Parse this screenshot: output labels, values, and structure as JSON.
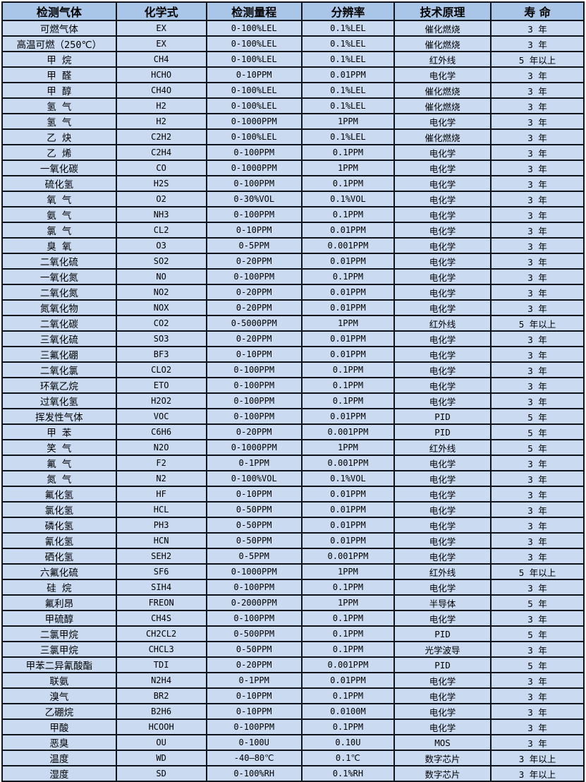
{
  "table": {
    "columns": [
      "检测气体",
      "化学式",
      "检测量程",
      "分辨率",
      "技术原理",
      "寿 命"
    ],
    "column_keys": [
      "gas-name",
      "formula",
      "range",
      "resolution",
      "principle",
      "lifespan"
    ],
    "rows": [
      [
        "可燃气体",
        "EX",
        "0-100%LEL",
        "0.1%LEL",
        "催化燃烧",
        "3 年"
      ],
      [
        "高温可燃（250℃）",
        "EX",
        "0-100%LEL",
        "0.1%LEL",
        "催化燃烧",
        "3 年"
      ],
      [
        "甲 烷",
        "CH4",
        "0-100%LEL",
        "0.1%LEL",
        "红外线",
        "5 年以上"
      ],
      [
        "甲 醛",
        "HCHO",
        "0-10PPM",
        "0.01PPM",
        "电化学",
        "3 年"
      ],
      [
        "甲 醇",
        "CH4O",
        "0-100%LEL",
        "0.1%LEL",
        "催化燃烧",
        "3 年"
      ],
      [
        "氢 气",
        "H2",
        "0-100%LEL",
        "0.1%LEL",
        "催化燃烧",
        "3 年"
      ],
      [
        "氢 气",
        "H2",
        "0-1000PPM",
        "1PPM",
        "电化学",
        "3 年"
      ],
      [
        "乙 炔",
        "C2H2",
        "0-100%LEL",
        "0.1%LEL",
        "催化燃烧",
        "3 年"
      ],
      [
        "乙 烯",
        "C2H4",
        "0-100PPM",
        "0.1PPM",
        "电化学",
        "3 年"
      ],
      [
        "一氧化碳",
        "CO",
        "0-1000PPM",
        "1PPM",
        "电化学",
        "3 年"
      ],
      [
        "硫化氢",
        "H2S",
        "0-100PPM",
        "0.1PPM",
        "电化学",
        "3 年"
      ],
      [
        "氧 气",
        "O2",
        "0-30%VOL",
        "0.1%VOL",
        "电化学",
        "3 年"
      ],
      [
        "氨 气",
        "NH3",
        "0-100PPM",
        "0.1PPM",
        "电化学",
        "3 年"
      ],
      [
        "氯 气",
        "CL2",
        "0-10PPM",
        "0.01PPM",
        "电化学",
        "3 年"
      ],
      [
        "臭 氧",
        "O3",
        "0-5PPM",
        "0.001PPM",
        "电化学",
        "3 年"
      ],
      [
        "二氧化硫",
        "SO2",
        "0-20PPM",
        "0.01PPM",
        "电化学",
        "3 年"
      ],
      [
        "一氧化氮",
        "NO",
        "0-100PPM",
        "0.1PPM",
        "电化学",
        "3 年"
      ],
      [
        "二氧化氮",
        "NO2",
        "0-20PPM",
        "0.01PPM",
        "电化学",
        "3 年"
      ],
      [
        "氮氧化物",
        "NOX",
        "0-20PPM",
        "0.01PPM",
        "电化学",
        "3 年"
      ],
      [
        "二氧化碳",
        "CO2",
        "0-5000PPM",
        "1PPM",
        "红外线",
        "5 年以上"
      ],
      [
        "三氧化硫",
        "SO3",
        "0-20PPM",
        "0.01PPM",
        "电化学",
        "3 年"
      ],
      [
        "三氟化硼",
        "BF3",
        "0-10PPM",
        "0.01PPM",
        "电化学",
        "3 年"
      ],
      [
        "二氧化氯",
        "CLO2",
        "0-100PPM",
        "0.1PPM",
        "电化学",
        "3 年"
      ],
      [
        "环氧乙烷",
        "ETO",
        "0-100PPM",
        "0.1PPM",
        "电化学",
        "3 年"
      ],
      [
        "过氧化氢",
        "H2O2",
        "0-100PPM",
        "0.1PPM",
        "电化学",
        "3 年"
      ],
      [
        "挥发性气体",
        "VOC",
        "0-100PPM",
        "0.01PPM",
        "PID",
        "5 年"
      ],
      [
        "甲 苯",
        "C6H6",
        "0-20PPM",
        "0.001PPM",
        "PID",
        "5 年"
      ],
      [
        "笑 气",
        "N2O",
        "0-1000PPM",
        "1PPM",
        "红外线",
        "5 年"
      ],
      [
        "氟 气",
        "F2",
        "0-1PPM",
        "0.001PPM",
        "电化学",
        "3 年"
      ],
      [
        "氮 气",
        "N2",
        "0-100%VOL",
        "0.1%VOL",
        "电化学",
        "3 年"
      ],
      [
        "氟化氢",
        "HF",
        "0-10PPM",
        "0.01PPM",
        "电化学",
        "3 年"
      ],
      [
        "氯化氢",
        "HCL",
        "0-50PPM",
        "0.01PPM",
        "电化学",
        "3 年"
      ],
      [
        "磷化氢",
        "PH3",
        "0-50PPM",
        "0.01PPM",
        "电化学",
        "3 年"
      ],
      [
        "氰化氢",
        "HCN",
        "0-50PPM",
        "0.01PPM",
        "电化学",
        "3 年"
      ],
      [
        "硒化氢",
        "SEH2",
        "0-5PPM",
        "0.001PPM",
        "电化学",
        "3 年"
      ],
      [
        "六氟化硫",
        "SF6",
        "0-1000PPM",
        "1PPM",
        "红外线",
        "5 年以上"
      ],
      [
        "硅 烷",
        "SIH4",
        "0-100PPM",
        "0.1PPM",
        "电化学",
        "3 年"
      ],
      [
        "氟利昂",
        "FREON",
        "0-2000PPM",
        "1PPM",
        "半导体",
        "5 年"
      ],
      [
        "甲硫醇",
        "CH4S",
        "0-100PPM",
        "0.1PPM",
        "电化学",
        "3 年"
      ],
      [
        "二氯甲烷",
        "CH2CL2",
        "0-500PPM",
        "0.1PPM",
        "PID",
        "5 年"
      ],
      [
        "三氯甲烷",
        "CHCL3",
        "0-50PPM",
        "0.1PPM",
        "光学波导",
        "3 年"
      ],
      [
        "甲苯二异氰酸酯",
        "TDI",
        "0-20PPM",
        "0.001PPM",
        "PID",
        "5 年"
      ],
      [
        "联氨",
        "N2H4",
        "0-1PPM",
        "0.01PPM",
        "电化学",
        "3 年"
      ],
      [
        "溴气",
        "BR2",
        "0-10PPM",
        "0.1PPM",
        "电化学",
        "3 年"
      ],
      [
        "乙硼烷",
        "B2H6",
        "0-10PPM",
        "0.0100M",
        "电化学",
        "3 年"
      ],
      [
        "甲酸",
        "HCOOH",
        "0-100PPM",
        "0.1PPM",
        "电化学",
        "3 年"
      ],
      [
        "恶臭",
        "OU",
        "0-100U",
        "0.10U",
        "MOS",
        "3 年"
      ],
      [
        "温度",
        "WD",
        "-40—80℃",
        "0.1℃",
        "数字芯片",
        "3 年以上"
      ],
      [
        "湿度",
        "SD",
        "0-100%RH",
        "0.1%RH",
        "数字芯片",
        "3 年以上"
      ]
    ]
  },
  "colors": {
    "header_bg": "#a9c6e8",
    "row_bg": "#c9daf1",
    "border": "#10151c",
    "text": "#000000"
  }
}
